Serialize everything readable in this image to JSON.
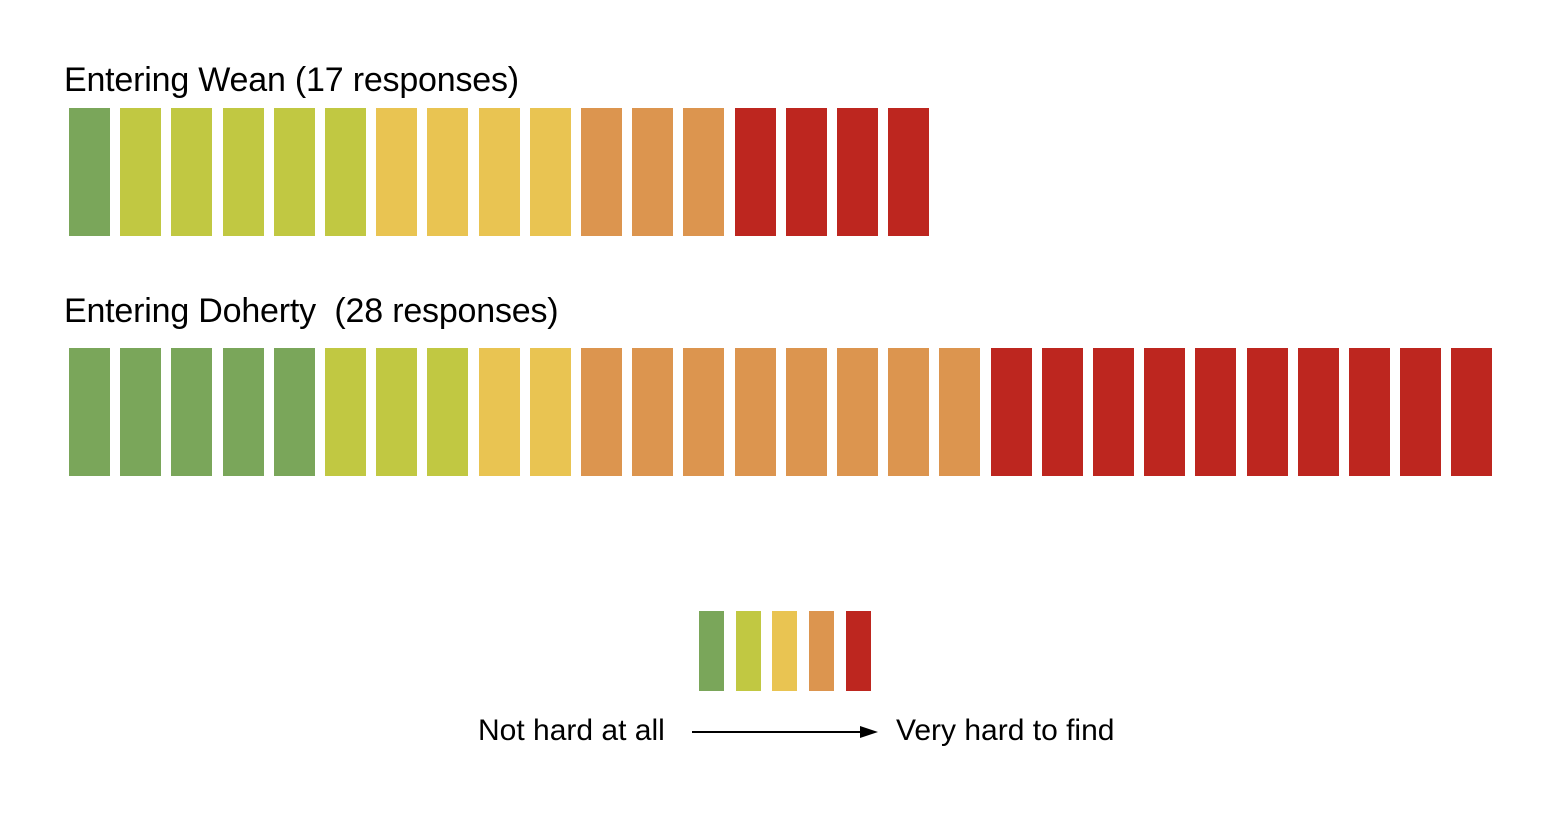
{
  "colors": {
    "level1": "#7aa65a",
    "level2": "#c1c842",
    "level3": "#e9c452",
    "level4": "#dc954f",
    "level5": "#bd261f"
  },
  "chart_data": {
    "type": "waffle",
    "title": "",
    "series": [
      {
        "name": "Entering Wean (17 responses)",
        "responses": 17,
        "counts_by_level": [
          1,
          5,
          4,
          3,
          4
        ],
        "values": [
          1,
          2,
          2,
          2,
          2,
          2,
          3,
          3,
          3,
          3,
          4,
          4,
          4,
          5,
          5,
          5,
          5
        ]
      },
      {
        "name": "Entering Doherty  (28 responses)",
        "responses": 28,
        "counts_by_level": [
          5,
          3,
          2,
          8,
          10
        ],
        "values": [
          1,
          1,
          1,
          1,
          1,
          2,
          2,
          2,
          3,
          3,
          4,
          4,
          4,
          4,
          4,
          4,
          4,
          4,
          5,
          5,
          5,
          5,
          5,
          5,
          5,
          5,
          5,
          5
        ]
      }
    ],
    "levels": [
      1,
      2,
      3,
      4,
      5
    ],
    "legend": {
      "low_label": "Not hard at all",
      "high_label": "Very hard to find",
      "placement": "bottom-center"
    }
  }
}
